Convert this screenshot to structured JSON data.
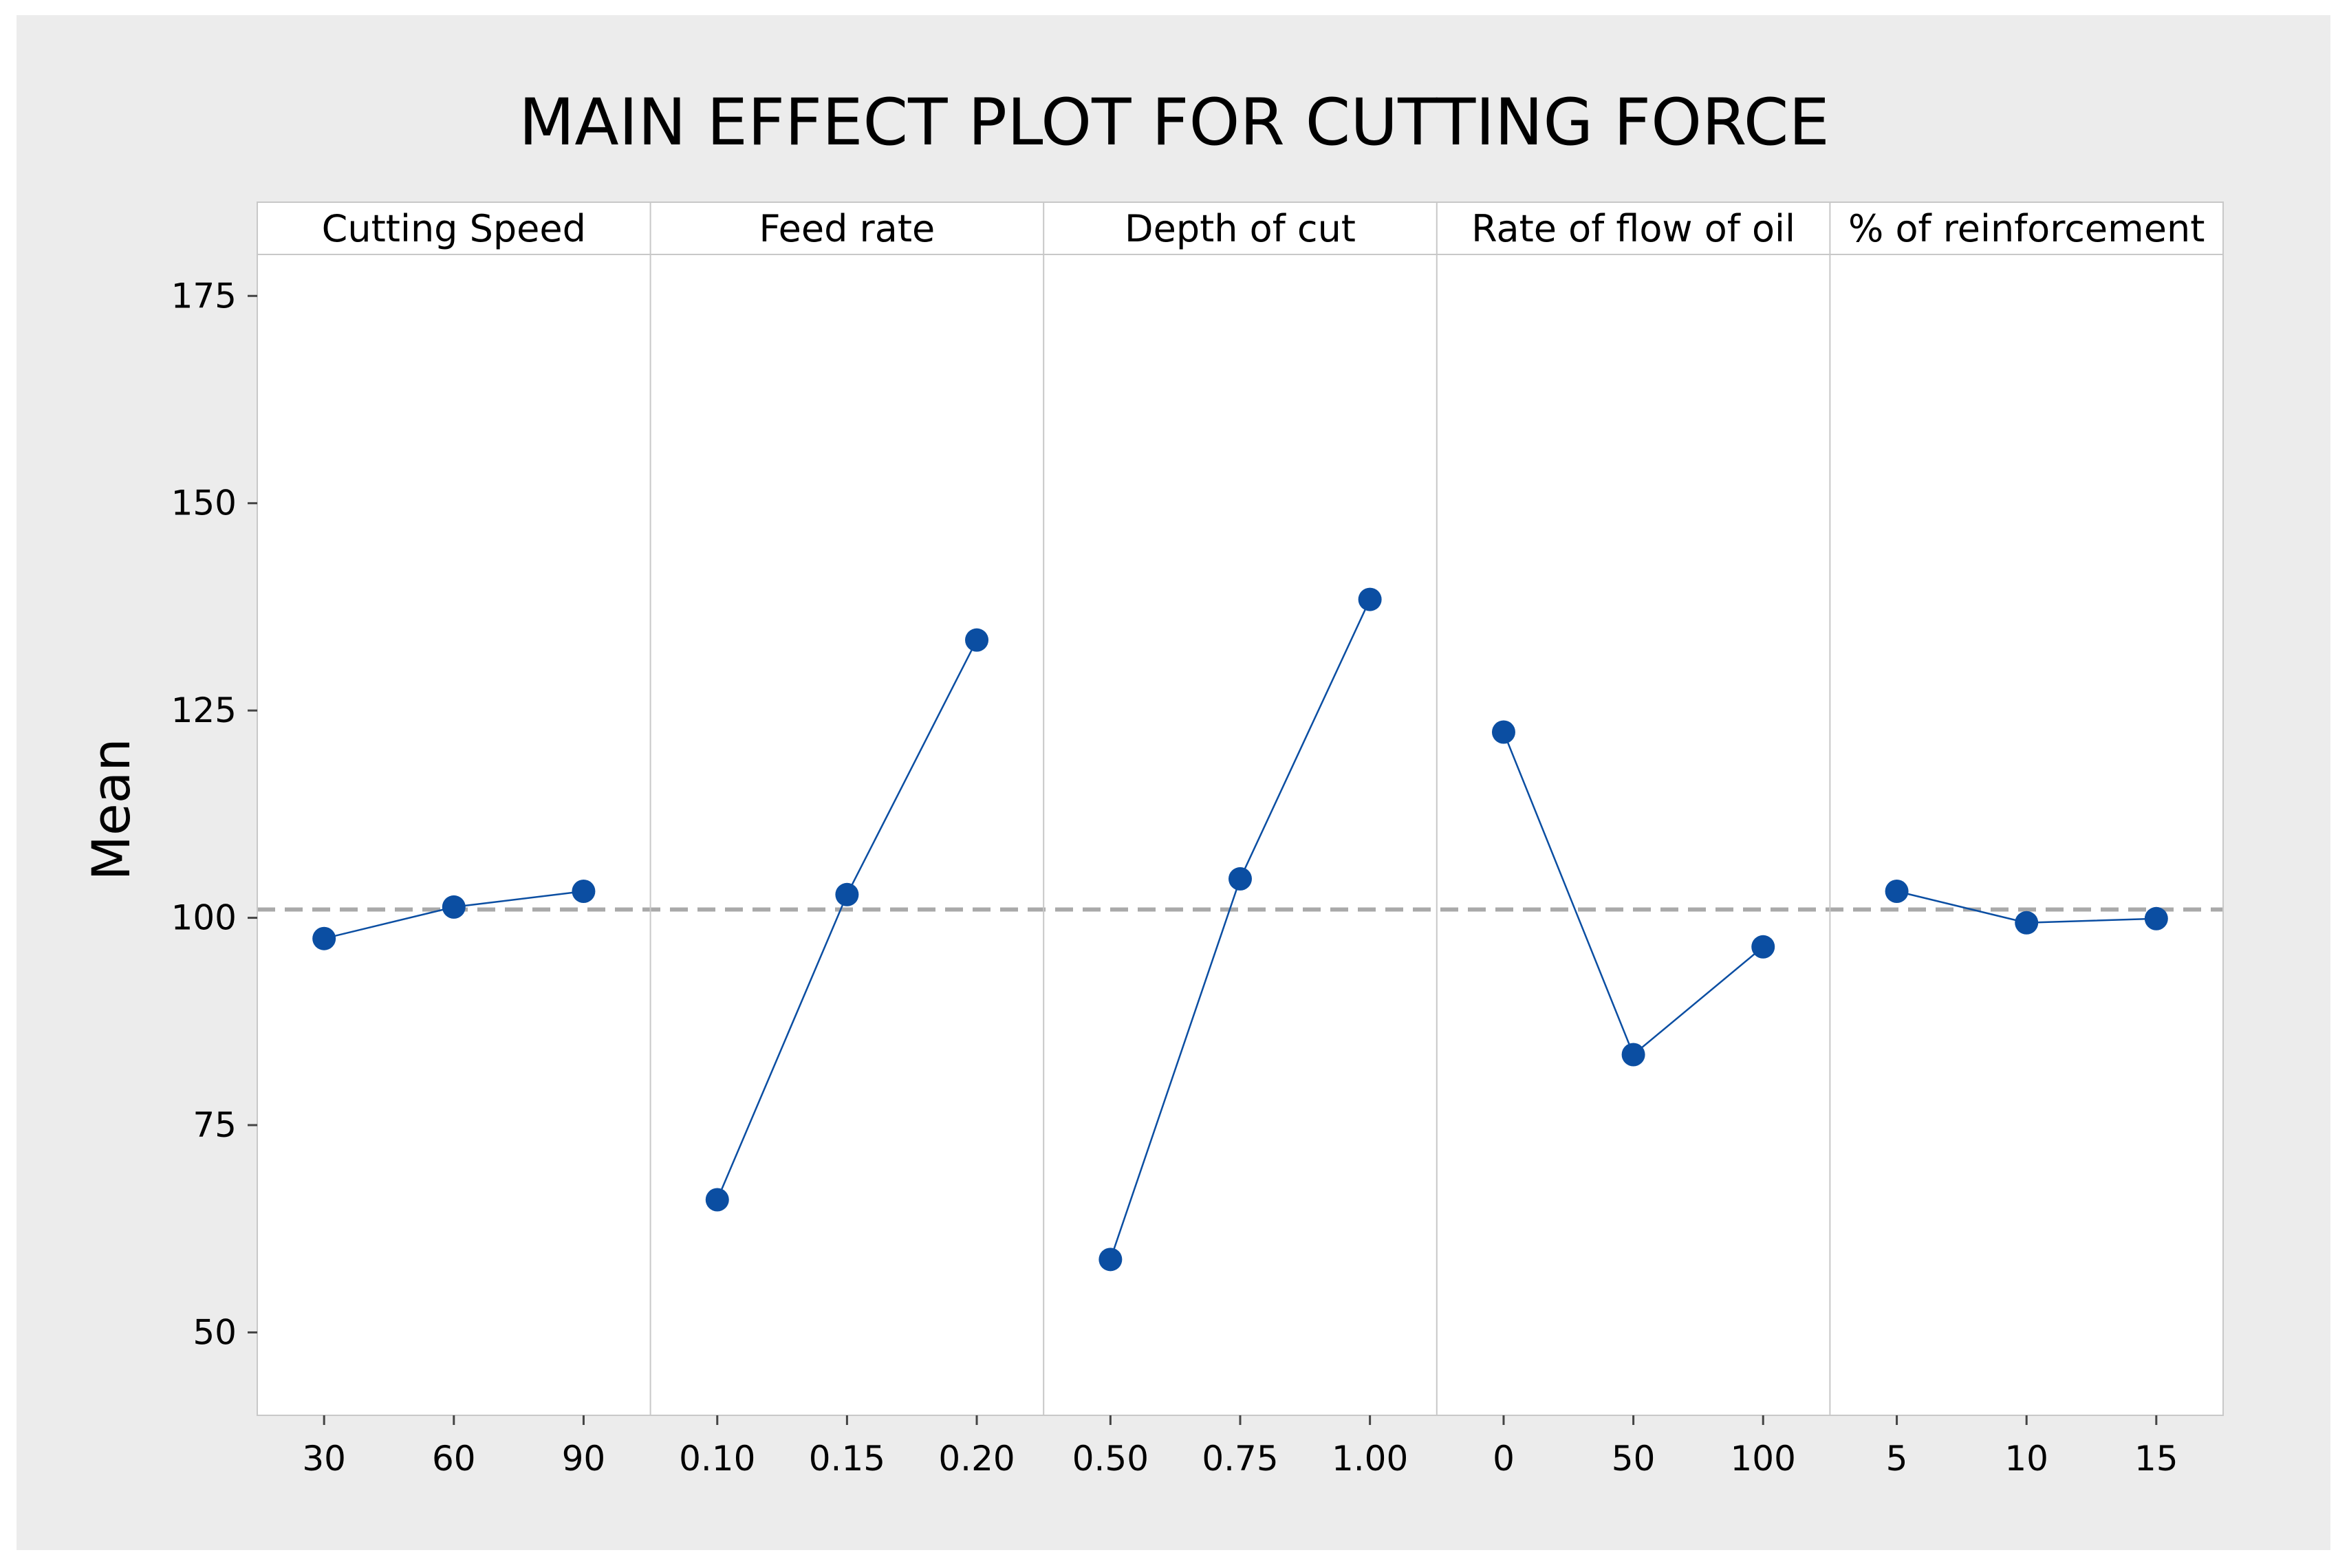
{
  "chart_data": {
    "type": "line",
    "title": "MAIN EFFECT PLOT FOR CUTTING FORCE",
    "ylabel": "Mean",
    "xlabel": "",
    "ylim": [
      40,
      180
    ],
    "yticks": [
      50,
      75,
      100,
      125,
      150,
      175
    ],
    "reference_mean": 101,
    "grid": false,
    "legend": "none",
    "colors": {
      "series": "#0b4ea2",
      "reference": "#a9a9a9",
      "frame": "#ececec",
      "panel_border": "#c8c8c8"
    },
    "panels": [
      {
        "name": "Cutting Speed",
        "levels": [
          "30",
          "60",
          "90"
        ],
        "values": [
          97.5,
          101.3,
          103.2
        ]
      },
      {
        "name": "Feed rate",
        "levels": [
          "0.10",
          "0.15",
          "0.20"
        ],
        "values": [
          66,
          102.8,
          133.5
        ]
      },
      {
        "name": "Depth of cut",
        "levels": [
          "0.50",
          "0.75",
          "1.00"
        ],
        "values": [
          58.8,
          104.7,
          138.4
        ]
      },
      {
        "name": "Rate of flow of oil",
        "levels": [
          "0",
          "50",
          "100"
        ],
        "values": [
          122.4,
          83.5,
          96.5
        ]
      },
      {
        "name": "% of reinforcement",
        "levels": [
          "5",
          "10",
          "15"
        ],
        "values": [
          103.2,
          99.4,
          99.9
        ]
      }
    ]
  }
}
